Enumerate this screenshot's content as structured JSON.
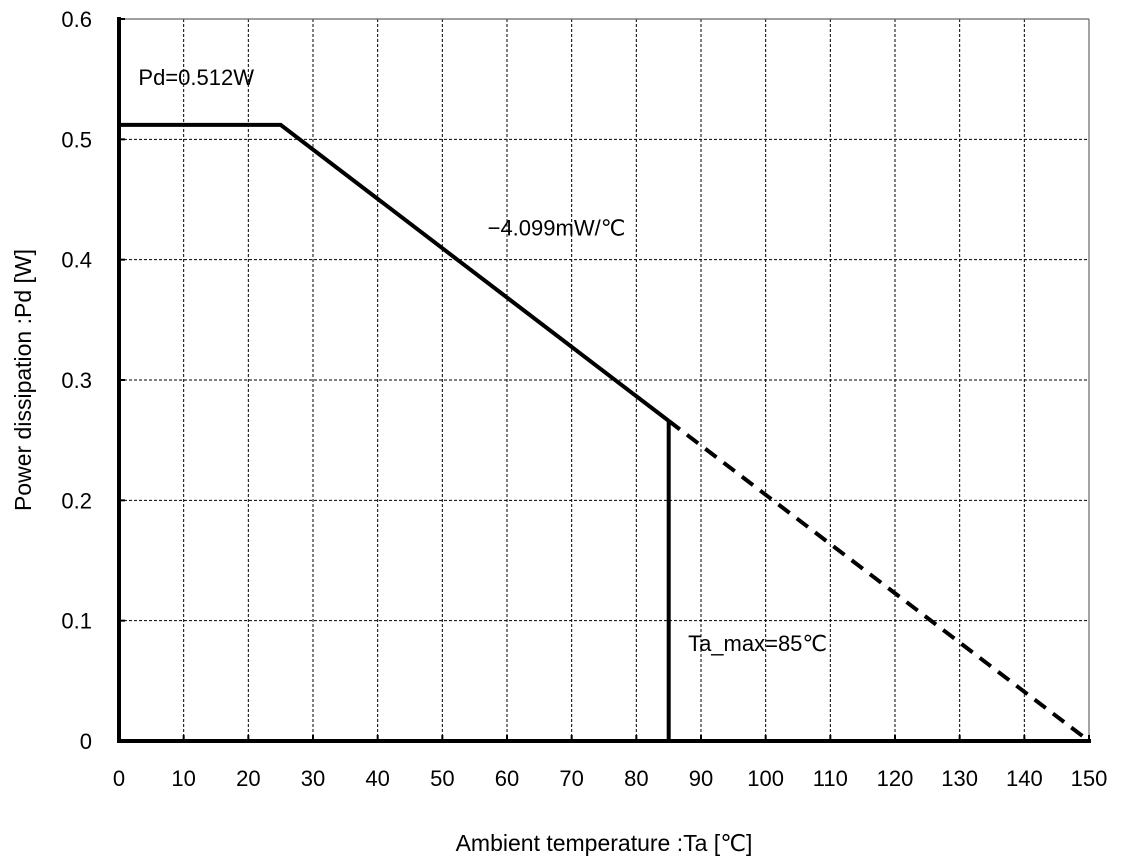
{
  "chart_data": {
    "type": "line",
    "xlabel": "Ambient temperature  :Ta [℃]",
    "ylabel": "Power dissipation  :Pd [W]",
    "xlim": [
      0,
      150
    ],
    "ylim": [
      0,
      0.6
    ],
    "x_ticks": [
      "0",
      "10",
      "20",
      "30",
      "40",
      "50",
      "60",
      "70",
      "80",
      "90",
      "100",
      "110",
      "120",
      "130",
      "140",
      "150"
    ],
    "y_ticks": [
      "0",
      "0.1",
      "0.2",
      "0.3",
      "0.4",
      "0.5",
      "0.6"
    ],
    "grid": true,
    "series": [
      {
        "style": "solid",
        "x": [
          0,
          25,
          85
        ],
        "y": [
          0.512,
          0.512,
          0.266
        ]
      },
      {
        "style": "dashed",
        "x": [
          85,
          150
        ],
        "y": [
          0.266,
          0
        ]
      },
      {
        "style": "solid",
        "x": [
          85,
          85
        ],
        "y": [
          0.266,
          0
        ]
      }
    ],
    "annotations": [
      {
        "text": "Pd=0.512W",
        "x": 3,
        "y": 0.545
      },
      {
        "text": "−4.099mW/℃",
        "x": 57,
        "y": 0.42
      },
      {
        "text": "Ta_max=85℃",
        "x": 88,
        "y": 0.075
      }
    ]
  }
}
